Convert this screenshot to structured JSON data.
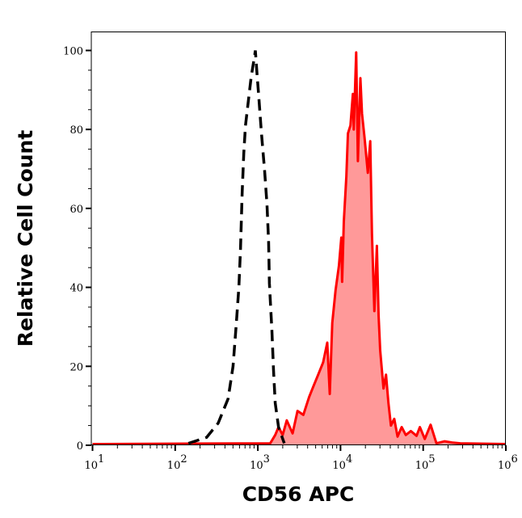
{
  "chart_data": {
    "type": "area",
    "xlabel": "CD56 APC",
    "ylabel": "Relative Cell Count",
    "x_scale": "log",
    "xlim": [
      10,
      1000000
    ],
    "ylim": [
      0,
      104.7
    ],
    "grid": false,
    "x_ticks": [
      {
        "value": 10,
        "base": "10",
        "exp": "1"
      },
      {
        "value": 100,
        "base": "10",
        "exp": "2"
      },
      {
        "value": 1000,
        "base": "10",
        "exp": "3"
      },
      {
        "value": 10000,
        "base": "10",
        "exp": "4"
      },
      {
        "value": 100000,
        "base": "10",
        "exp": "5"
      },
      {
        "value": 1000000,
        "base": "10",
        "exp": "6"
      }
    ],
    "y_ticks": [
      0,
      20,
      40,
      60,
      80,
      100
    ],
    "y_tick_labels": [
      "0",
      "20",
      "40",
      "60",
      "80",
      "100"
    ],
    "series": [
      {
        "style": "dashed-line",
        "color": "#000000",
        "log10_x": [
          2.16,
          2.38,
          2.52,
          2.64,
          2.7,
          2.74,
          2.77,
          2.79,
          2.81,
          2.83,
          2.85,
          2.89,
          2.92,
          2.96,
          2.97,
          2.99,
          3.01,
          3.04,
          3.06,
          3.08,
          3.11,
          3.13,
          3.14,
          3.17,
          3.19,
          3.21,
          3.25,
          3.32
        ],
        "y": [
          0.5,
          2,
          5.6,
          11.8,
          20,
          31,
          40,
          49.5,
          64,
          74,
          81,
          88,
          93.4,
          98.5,
          100,
          94,
          88.7,
          80,
          75,
          70,
          61,
          51.6,
          41,
          29,
          19,
          10.7,
          4.6,
          0.5
        ]
      },
      {
        "style": "filled-area",
        "color": "#ff0000",
        "fill": "#ff9999",
        "log10_x": [
          1.0,
          3.15,
          3.21,
          3.25,
          3.3,
          3.35,
          3.42,
          3.48,
          3.55,
          3.62,
          3.67,
          3.73,
          3.79,
          3.84,
          3.87,
          3.9,
          3.94,
          3.98,
          4.01,
          4.02,
          4.04,
          4.07,
          4.09,
          4.12,
          4.15,
          4.16,
          4.19,
          4.21,
          4.24,
          4.26,
          4.29,
          4.33,
          4.36,
          4.38,
          4.41,
          4.44,
          4.46,
          4.48,
          4.52,
          4.55,
          4.58,
          4.61,
          4.65,
          4.69,
          4.74,
          4.79,
          4.85,
          4.92,
          4.96,
          5.02,
          5.09,
          5.16,
          5.26,
          5.35,
          5.45,
          6.0
        ],
        "y": [
          0.3,
          0.5,
          2.6,
          4.6,
          2.6,
          6.3,
          3,
          8.7,
          7.7,
          12.2,
          14.8,
          17.9,
          21,
          26,
          13,
          31,
          39.3,
          45.4,
          52.6,
          41.4,
          56.7,
          68,
          79,
          81,
          89,
          80,
          99.5,
          72,
          93,
          84,
          78,
          69,
          77,
          53.6,
          34,
          50.5,
          33,
          24,
          14.4,
          17.9,
          10.7,
          5,
          6.7,
          2.2,
          4.6,
          2.6,
          3.6,
          2.4,
          4.6,
          1.6,
          5.2,
          0.5,
          1,
          0.7,
          0.5,
          0.3
        ]
      }
    ]
  }
}
